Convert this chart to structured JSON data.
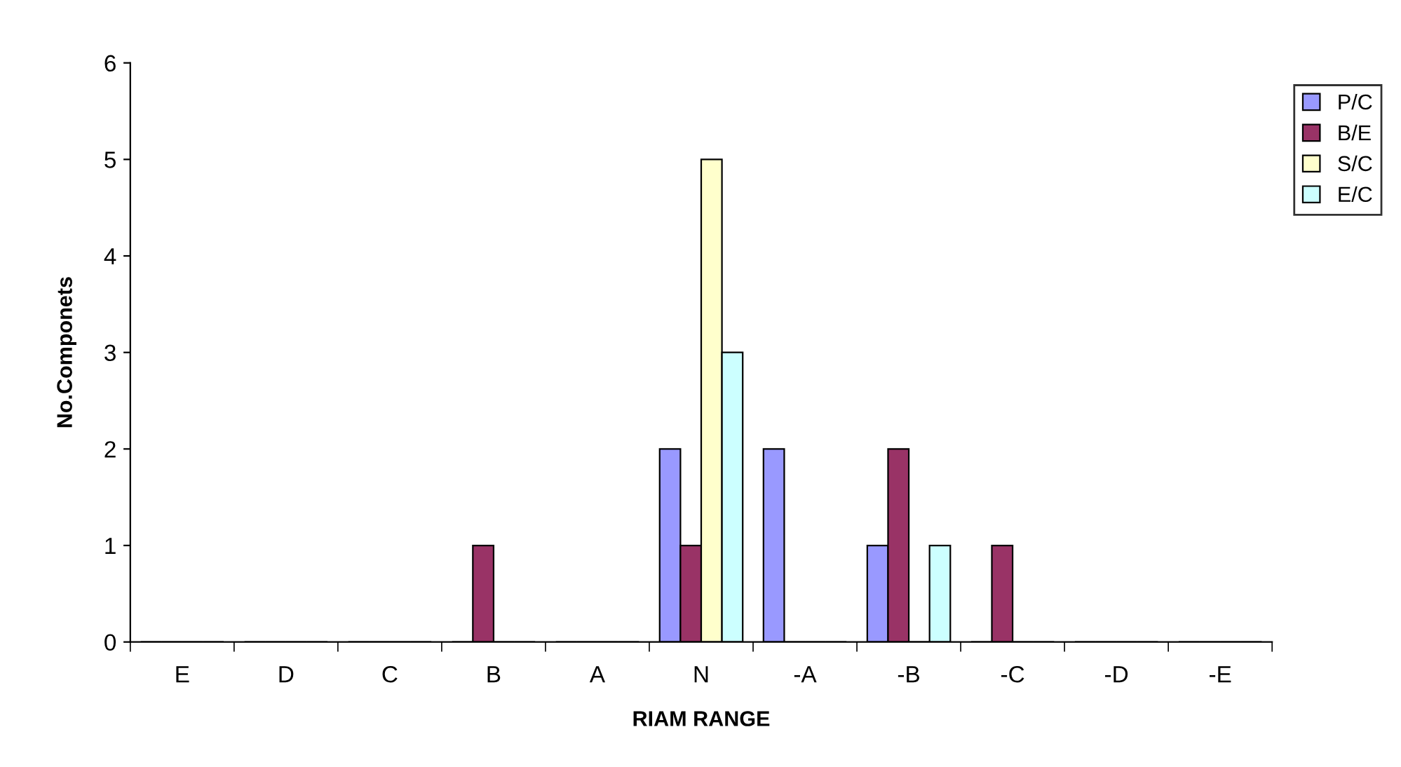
{
  "chart_data": {
    "type": "bar",
    "xlabel": "RIAM RANGE",
    "ylabel": "No.Componets",
    "categories": [
      "E",
      "D",
      "C",
      "B",
      "A",
      "N",
      "-A",
      "-B",
      "-C",
      "-D",
      "-E"
    ],
    "series": [
      {
        "name": "P/C",
        "color": "#9999ff",
        "values": [
          0,
          0,
          0,
          0,
          0,
          2,
          2,
          1,
          0,
          0,
          0
        ]
      },
      {
        "name": "B/E",
        "color": "#993366",
        "values": [
          0,
          0,
          0,
          1,
          0,
          1,
          0,
          2,
          1,
          0,
          0
        ]
      },
      {
        "name": "S/C",
        "color": "#ffffcc",
        "values": [
          0,
          0,
          0,
          0,
          0,
          5,
          0,
          0,
          0,
          0,
          0
        ]
      },
      {
        "name": "E/C",
        "color": "#ccffff",
        "values": [
          0,
          0,
          0,
          0,
          0,
          3,
          0,
          1,
          0,
          0,
          0
        ]
      }
    ],
    "ylim": [
      0,
      6
    ],
    "yticks": [
      0,
      1,
      2,
      3,
      4,
      5,
      6
    ],
    "grid": false,
    "legend": "top right"
  }
}
